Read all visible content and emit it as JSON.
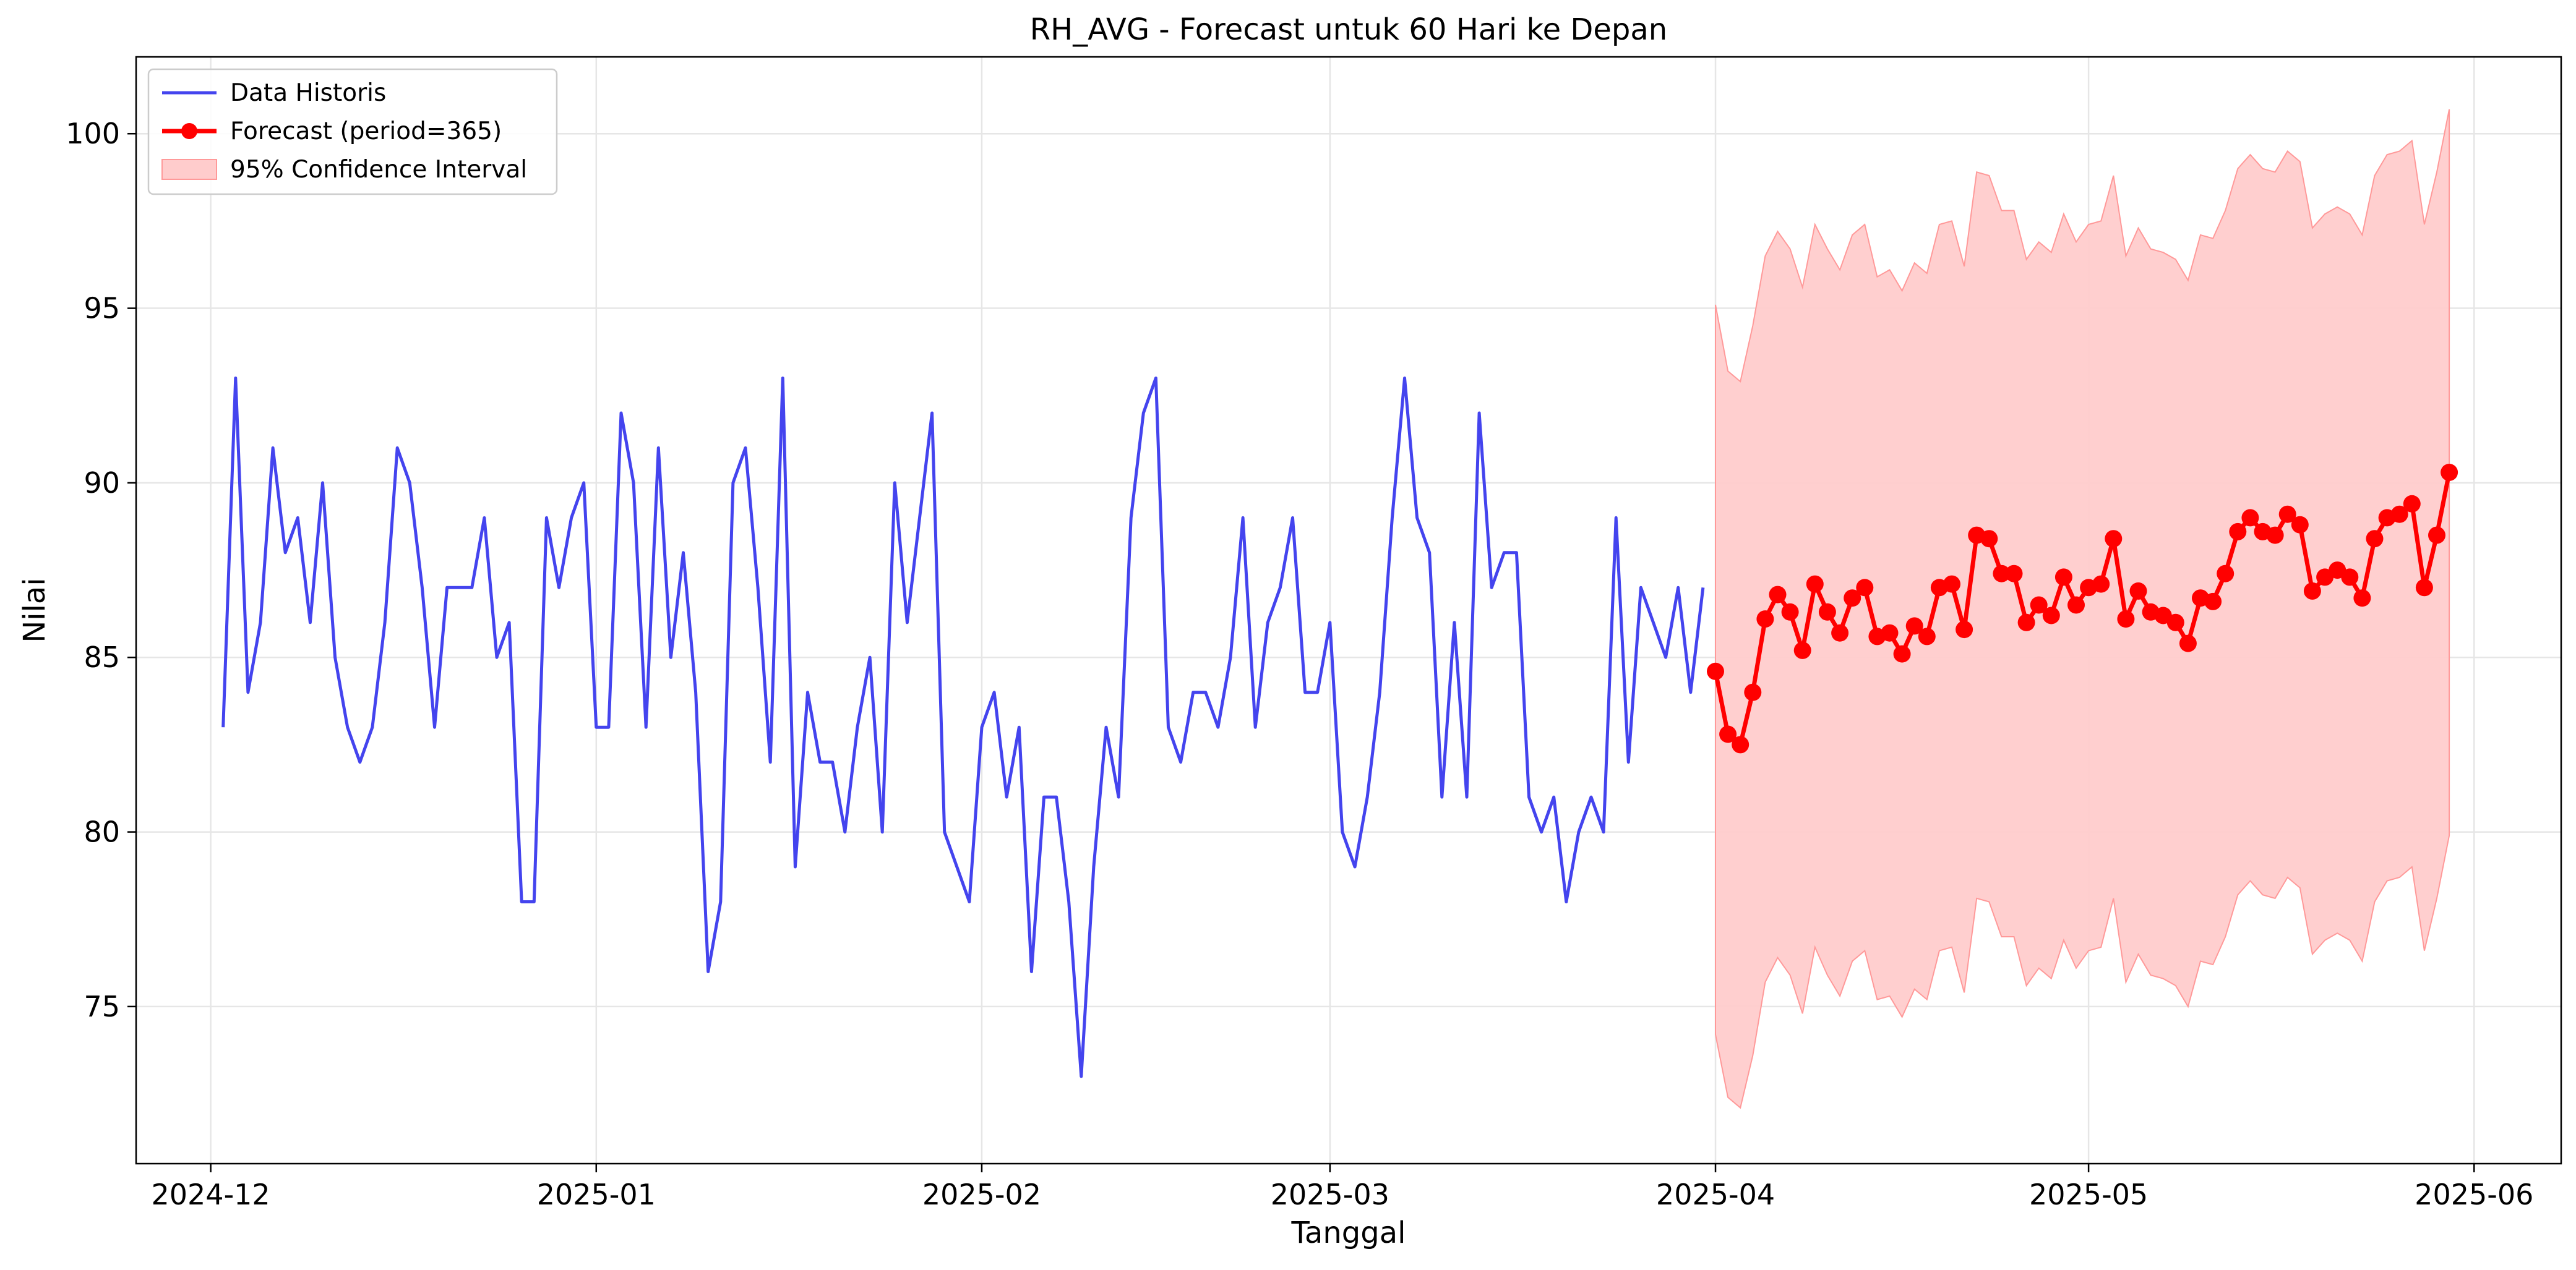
{
  "chart_data": {
    "type": "line",
    "title": "RH_AVG - Forecast untuk 60 Hari ke Depan",
    "xlabel": "Tanggal",
    "ylabel": "Nilai",
    "x_type": "date",
    "xlim": [
      "2024-11-25",
      "2025-06-08"
    ],
    "ylim": [
      70.5,
      102.2
    ],
    "x_ticks": [
      "2024-12-01",
      "2025-01-01",
      "2025-02-01",
      "2025-03-01",
      "2025-04-01",
      "2025-05-01",
      "2025-06-01"
    ],
    "x_tick_labels": [
      "2024-12",
      "2025-01",
      "2025-02",
      "2025-03",
      "2025-04",
      "2025-05",
      "2025-06"
    ],
    "y_ticks": [
      75,
      80,
      85,
      90,
      95,
      100
    ],
    "grid": true,
    "legend_position": "top-left",
    "legend": [
      "Data Historis",
      "Forecast (period=365)",
      "95% Confidence Interval"
    ],
    "colors": {
      "historical": "#4444ee",
      "forecast": "#ff0000",
      "confidence": "#ffcccc",
      "confidence_edge": "#ff9999"
    },
    "series": [
      {
        "name": "Data Historis",
        "type": "line",
        "points": [
          [
            "2024-12-02",
            83
          ],
          [
            "2024-12-03",
            93
          ],
          [
            "2024-12-04",
            84
          ],
          [
            "2024-12-05",
            86
          ],
          [
            "2024-12-06",
            91
          ],
          [
            "2024-12-07",
            88
          ],
          [
            "2024-12-08",
            89
          ],
          [
            "2024-12-09",
            86
          ],
          [
            "2024-12-10",
            90
          ],
          [
            "2024-12-11",
            85
          ],
          [
            "2024-12-12",
            83
          ],
          [
            "2024-12-13",
            82
          ],
          [
            "2024-12-14",
            83
          ],
          [
            "2024-12-15",
            86
          ],
          [
            "2024-12-16",
            91
          ],
          [
            "2024-12-17",
            90
          ],
          [
            "2024-12-18",
            87
          ],
          [
            "2024-12-19",
            83
          ],
          [
            "2024-12-20",
            87
          ],
          [
            "2024-12-21",
            87
          ],
          [
            "2024-12-22",
            87
          ],
          [
            "2024-12-23",
            89
          ],
          [
            "2024-12-24",
            85
          ],
          [
            "2024-12-25",
            86
          ],
          [
            "2024-12-26",
            78
          ],
          [
            "2024-12-27",
            78
          ],
          [
            "2024-12-28",
            89
          ],
          [
            "2024-12-29",
            87
          ],
          [
            "2024-12-30",
            89
          ],
          [
            "2024-12-31",
            90
          ],
          [
            "2025-01-01",
            83
          ],
          [
            "2025-01-02",
            83
          ],
          [
            "2025-01-03",
            92
          ],
          [
            "2025-01-04",
            90
          ],
          [
            "2025-01-05",
            83
          ],
          [
            "2025-01-06",
            91
          ],
          [
            "2025-01-07",
            85
          ],
          [
            "2025-01-08",
            88
          ],
          [
            "2025-01-09",
            84
          ],
          [
            "2025-01-10",
            76
          ],
          [
            "2025-01-11",
            78
          ],
          [
            "2025-01-12",
            90
          ],
          [
            "2025-01-13",
            91
          ],
          [
            "2025-01-14",
            87
          ],
          [
            "2025-01-15",
            82
          ],
          [
            "2025-01-16",
            93
          ],
          [
            "2025-01-17",
            79
          ],
          [
            "2025-01-18",
            84
          ],
          [
            "2025-01-19",
            82
          ],
          [
            "2025-01-20",
            82
          ],
          [
            "2025-01-21",
            80
          ],
          [
            "2025-01-22",
            83
          ],
          [
            "2025-01-23",
            85
          ],
          [
            "2025-01-24",
            80
          ],
          [
            "2025-01-25",
            90
          ],
          [
            "2025-01-26",
            86
          ],
          [
            "2025-01-27",
            89
          ],
          [
            "2025-01-28",
            92
          ],
          [
            "2025-01-29",
            80
          ],
          [
            "2025-01-30",
            79
          ],
          [
            "2025-01-31",
            78
          ],
          [
            "2025-02-01",
            83
          ],
          [
            "2025-02-02",
            84
          ],
          [
            "2025-02-03",
            81
          ],
          [
            "2025-02-04",
            83
          ],
          [
            "2025-02-05",
            76
          ],
          [
            "2025-02-06",
            81
          ],
          [
            "2025-02-07",
            81
          ],
          [
            "2025-02-08",
            78
          ],
          [
            "2025-02-09",
            73
          ],
          [
            "2025-02-10",
            79
          ],
          [
            "2025-02-11",
            83
          ],
          [
            "2025-02-12",
            81
          ],
          [
            "2025-02-13",
            89
          ],
          [
            "2025-02-14",
            92
          ],
          [
            "2025-02-15",
            93
          ],
          [
            "2025-02-16",
            83
          ],
          [
            "2025-02-17",
            82
          ],
          [
            "2025-02-18",
            84
          ],
          [
            "2025-02-19",
            84
          ],
          [
            "2025-02-20",
            83
          ],
          [
            "2025-02-21",
            85
          ],
          [
            "2025-02-22",
            89
          ],
          [
            "2025-02-23",
            83
          ],
          [
            "2025-02-24",
            86
          ],
          [
            "2025-02-25",
            87
          ],
          [
            "2025-02-26",
            89
          ],
          [
            "2025-02-27",
            84
          ],
          [
            "2025-02-28",
            84
          ],
          [
            "2025-03-01",
            86
          ],
          [
            "2025-03-02",
            80
          ],
          [
            "2025-03-03",
            79
          ],
          [
            "2025-03-04",
            81
          ],
          [
            "2025-03-05",
            84
          ],
          [
            "2025-03-06",
            89
          ],
          [
            "2025-03-07",
            93
          ],
          [
            "2025-03-08",
            89
          ],
          [
            "2025-03-09",
            88
          ],
          [
            "2025-03-10",
            81
          ],
          [
            "2025-03-11",
            86
          ],
          [
            "2025-03-12",
            81
          ],
          [
            "2025-03-13",
            92
          ],
          [
            "2025-03-14",
            87
          ],
          [
            "2025-03-15",
            88
          ],
          [
            "2025-03-16",
            88
          ],
          [
            "2025-03-17",
            81
          ],
          [
            "2025-03-18",
            80
          ],
          [
            "2025-03-19",
            81
          ],
          [
            "2025-03-20",
            78
          ],
          [
            "2025-03-21",
            80
          ],
          [
            "2025-03-22",
            81
          ],
          [
            "2025-03-23",
            80
          ],
          [
            "2025-03-24",
            89
          ],
          [
            "2025-03-25",
            82
          ],
          [
            "2025-03-26",
            87
          ],
          [
            "2025-03-27",
            86
          ],
          [
            "2025-03-28",
            85
          ],
          [
            "2025-03-29",
            87
          ],
          [
            "2025-03-30",
            84
          ],
          [
            "2025-03-31",
            87
          ]
        ]
      },
      {
        "name": "Forecast (period=365)",
        "type": "line",
        "markers": true,
        "start_date": "2025-04-01",
        "values": [
          84.6,
          82.8,
          82.5,
          84.0,
          86.1,
          86.8,
          86.3,
          85.2,
          87.1,
          86.3,
          85.7,
          86.7,
          87.0,
          85.6,
          85.7,
          85.1,
          85.9,
          85.6,
          87.0,
          87.1,
          85.8,
          88.5,
          88.4,
          87.4,
          87.4,
          86.0,
          86.5,
          86.2,
          87.3,
          86.5,
          87.0,
          87.1,
          88.4,
          86.1,
          86.9,
          86.3,
          86.2,
          86.0,
          85.4,
          86.7,
          86.6,
          87.4,
          88.6,
          89.0,
          88.6,
          88.5,
          89.1,
          88.8,
          86.9,
          87.3,
          87.5,
          87.3,
          86.7,
          88.4,
          89.0,
          89.1,
          89.4,
          87.0,
          88.5,
          90.3
        ]
      },
      {
        "name": "95% Confidence Interval",
        "type": "band",
        "start_date": "2025-04-01",
        "upper": [
          95.1,
          93.2,
          92.9,
          94.5,
          96.5,
          97.2,
          96.7,
          95.6,
          97.4,
          96.7,
          96.1,
          97.1,
          97.4,
          95.9,
          96.1,
          95.5,
          96.3,
          96.0,
          97.4,
          97.5,
          96.2,
          98.9,
          98.8,
          97.8,
          97.8,
          96.4,
          96.9,
          96.6,
          97.7,
          96.9,
          97.4,
          97.5,
          98.8,
          96.5,
          97.3,
          96.7,
          96.6,
          96.4,
          95.8,
          97.1,
          97.0,
          97.8,
          99.0,
          99.4,
          99.0,
          98.9,
          99.5,
          99.2,
          97.3,
          97.7,
          97.9,
          97.7,
          97.1,
          98.8,
          99.4,
          99.5,
          99.8,
          97.4,
          98.9,
          100.7
        ],
        "lower": [
          74.2,
          72.4,
          72.1,
          73.6,
          75.7,
          76.4,
          75.9,
          74.8,
          76.7,
          75.9,
          75.3,
          76.3,
          76.6,
          75.2,
          75.3,
          74.7,
          75.5,
          75.2,
          76.6,
          76.7,
          75.4,
          78.1,
          78.0,
          77.0,
          77.0,
          75.6,
          76.1,
          75.8,
          76.9,
          76.1,
          76.6,
          76.7,
          78.1,
          75.7,
          76.5,
          75.9,
          75.8,
          75.6,
          75.0,
          76.3,
          76.2,
          77.0,
          78.2,
          78.6,
          78.2,
          78.1,
          78.7,
          78.4,
          76.5,
          76.9,
          77.1,
          76.9,
          76.3,
          78.0,
          78.6,
          78.7,
          79.0,
          76.6,
          78.1,
          79.9
        ]
      }
    ]
  }
}
